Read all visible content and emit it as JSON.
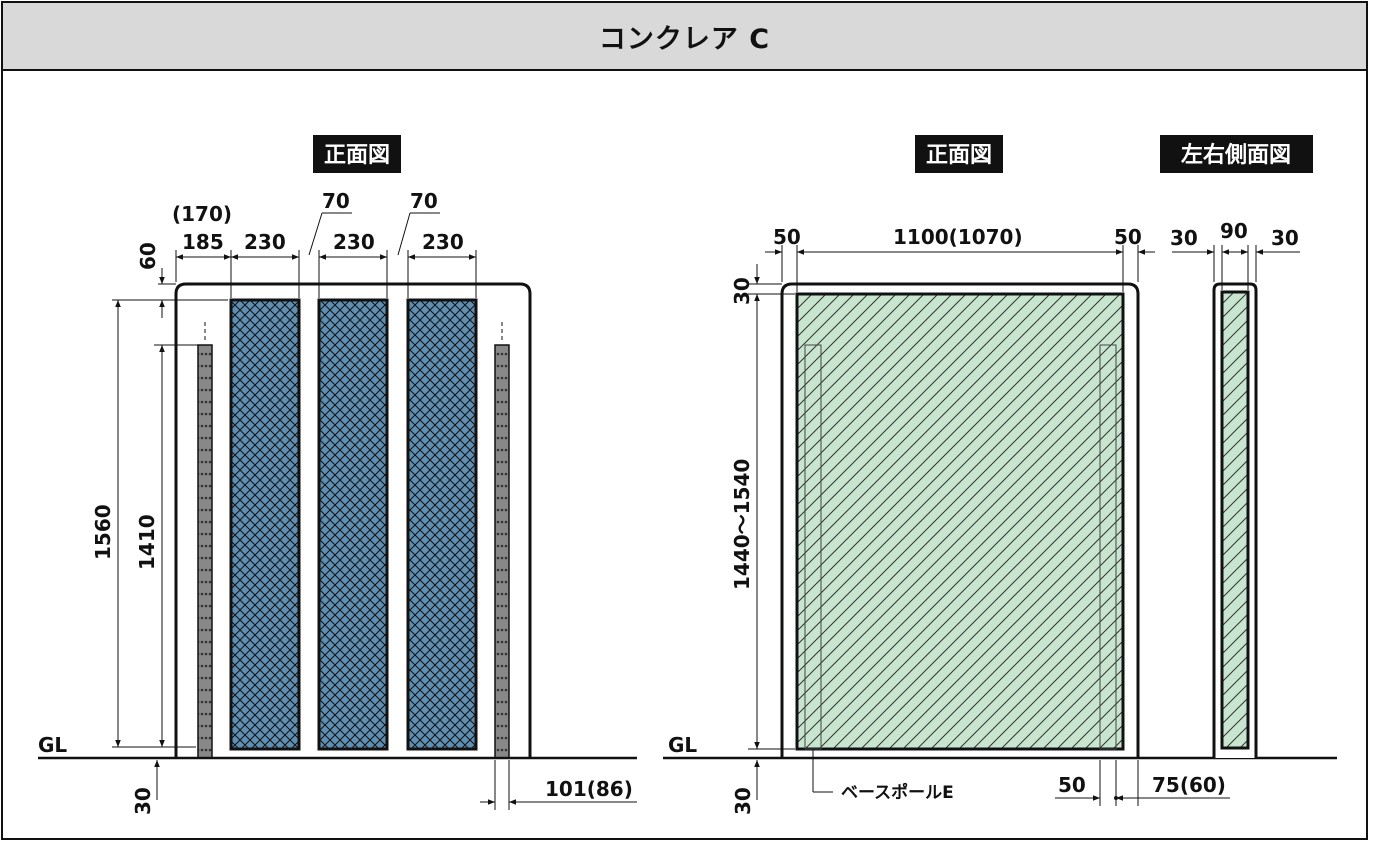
{
  "title": "コンクレア C",
  "left_view": {
    "label": "正面図",
    "dims_top": {
      "note": "(170)",
      "d1": "185",
      "d2": "230",
      "d3": "230",
      "d4": "230",
      "gap1": "70",
      "gap2": "70"
    },
    "dim_top_offset": "60",
    "dim_total_height": "1560",
    "dim_pole_height": "1410",
    "gl": "GL",
    "dim_below": "30",
    "dim_pole": "101(86)"
  },
  "right_front": {
    "label": "正面図",
    "dim_left": "50",
    "dim_width": "1100(1070)",
    "dim_right": "50",
    "dim_top": "30",
    "dim_height": "1440〜1540",
    "gl": "GL",
    "dim_below": "30",
    "pole_label": "ベースポールE",
    "dim_bottom_a": "50",
    "dim_bottom_b": "75(60)"
  },
  "side_view": {
    "label": "左右側面図",
    "dim_left": "30",
    "dim_mid": "90",
    "dim_right": "30"
  },
  "colors": {
    "panel_blue": "#5f8fb3",
    "panel_green": "#c8e6cf",
    "title_bg": "#d9d9d9",
    "line": "#111111"
  }
}
